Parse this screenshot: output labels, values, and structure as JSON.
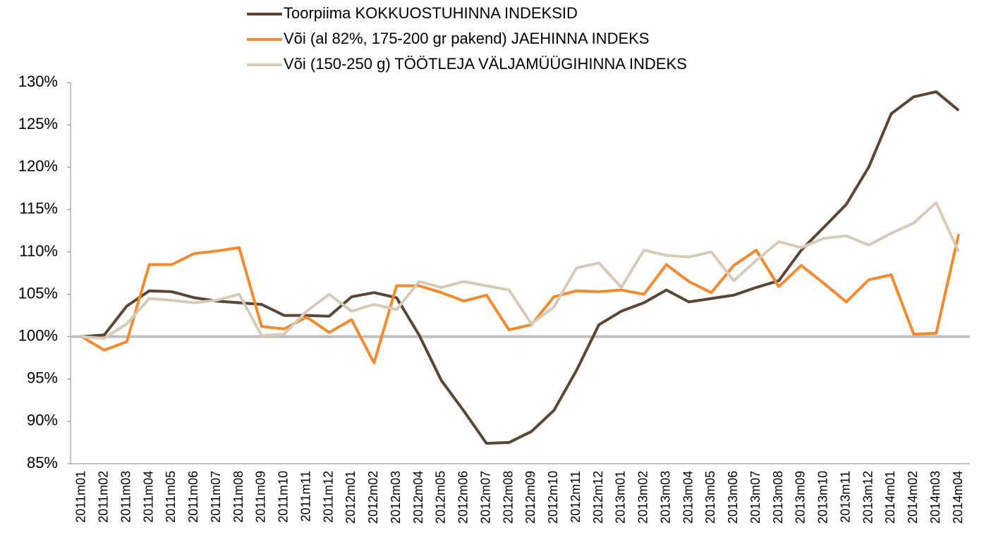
{
  "chart_data": {
    "type": "line",
    "categories": [
      "2011m01",
      "2011m02",
      "2011m03",
      "2011m04",
      "2011m05",
      "2011m06",
      "2011m07",
      "2011m08",
      "2011m09",
      "2011m10",
      "2011m11",
      "2011m12",
      "2012m01",
      "2012m02",
      "2012m03",
      "2012m04",
      "2012m05",
      "2012m06",
      "2012m07",
      "2012m08",
      "2012m09",
      "2012m10",
      "2012m11",
      "2012m12",
      "2013m01",
      "2013m02",
      "2013m03",
      "2013m04",
      "2013m05",
      "2013m06",
      "2013m07",
      "2013m08",
      "2013m09",
      "2013m10",
      "2013m11",
      "2013m12",
      "2014m01",
      "2014m02",
      "2014m03",
      "2014m04"
    ],
    "series": [
      {
        "name": "Toorpiima KOKKUOSTUHINNA INDEKSID",
        "color": "#5a4637",
        "values": [
          100,
          100.2,
          103.6,
          105.4,
          105.3,
          104.6,
          104.2,
          104.0,
          103.8,
          102.5,
          102.5,
          102.4,
          104.7,
          105.2,
          104.6,
          100.2,
          94.8,
          91.2,
          87.4,
          87.5,
          88.8,
          91.3,
          96.0,
          101.4,
          103.0,
          104.0,
          105.5,
          104.1,
          104.5,
          104.9,
          105.8,
          106.6,
          110.2,
          112.9,
          115.6,
          120.0,
          126.3,
          128.3,
          128.9,
          126.7
        ]
      },
      {
        "name": "Või (al 82%, 175-200 gr pakend) JAEHINNA INDEKS",
        "color": "#f28a30",
        "values": [
          100,
          98.4,
          99.4,
          108.5,
          108.5,
          109.8,
          110.1,
          110.5,
          101.2,
          100.9,
          102.3,
          100.5,
          102.0,
          96.9,
          106.0,
          106.0,
          105.2,
          104.2,
          104.9,
          100.8,
          101.4,
          104.7,
          105.4,
          105.3,
          105.5,
          105.0,
          108.5,
          106.5,
          105.2,
          108.4,
          110.2,
          105.9,
          108.4,
          106.3,
          104.1,
          106.7,
          107.3,
          100.3,
          100.4,
          112.1
        ]
      },
      {
        "name": "Või (150-250 g) TÖÖTLEJA VÄLJAMÜÜGIHINNA INDEKS",
        "color": "#d6cbb9",
        "values": [
          100,
          99.8,
          101.5,
          104.5,
          104.3,
          104.0,
          104.3,
          105.0,
          100.1,
          100.3,
          103.0,
          105.0,
          103.0,
          103.8,
          103.2,
          106.5,
          105.8,
          106.5,
          106.0,
          105.5,
          101.5,
          103.5,
          108.1,
          108.7,
          105.8,
          110.2,
          109.6,
          109.4,
          110.0,
          106.6,
          109.0,
          111.2,
          110.5,
          111.6,
          111.9,
          110.8,
          112.2,
          113.4,
          115.8,
          110.0
        ]
      }
    ],
    "ylim": [
      85,
      130
    ],
    "yticks": [
      {
        "value": 85,
        "label": "85%"
      },
      {
        "value": 90,
        "label": "90%"
      },
      {
        "value": 95,
        "label": "95%"
      },
      {
        "value": 100,
        "label": "100%"
      },
      {
        "value": 105,
        "label": "105%"
      },
      {
        "value": 110,
        "label": "110%"
      },
      {
        "value": 115,
        "label": "115%"
      },
      {
        "value": 120,
        "label": "120%"
      },
      {
        "value": 125,
        "label": "125%"
      },
      {
        "value": 130,
        "label": "130%"
      }
    ],
    "baseline": 100,
    "baseline_color": "#bfbfbf",
    "legend": "top"
  }
}
